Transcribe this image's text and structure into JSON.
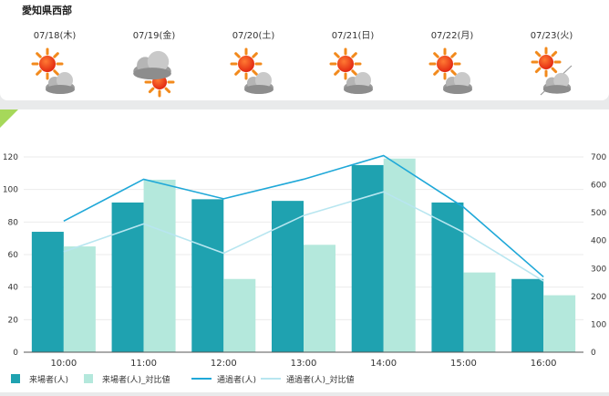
{
  "weather": {
    "region": "愛知県西部",
    "days": [
      {
        "date": "07/18(木)",
        "icon": "sun-with-cloud-icon"
      },
      {
        "date": "07/19(金)",
        "icon": "cloud-with-sun-icon"
      },
      {
        "date": "07/20(土)",
        "icon": "sun-with-cloud-icon"
      },
      {
        "date": "07/21(日)",
        "icon": "sun-with-cloud-icon"
      },
      {
        "date": "07/22(月)",
        "icon": "sun-with-cloud-icon"
      },
      {
        "date": "07/23(火)",
        "icon": "sun-then-cloud-icon"
      }
    ]
  },
  "chart_data": {
    "type": "bar",
    "categories": [
      "10:00",
      "11:00",
      "12:00",
      "13:00",
      "14:00",
      "15:00",
      "16:00"
    ],
    "series": [
      {
        "name": "来場者(人)",
        "type": "bar",
        "axis": "left",
        "color": "#1fa2b0",
        "values": [
          74,
          92,
          94,
          93,
          115,
          92,
          45
        ]
      },
      {
        "name": "来場者(人)_対比値",
        "type": "bar",
        "axis": "left",
        "color": "#b4e8dc",
        "values": [
          65,
          106,
          45,
          66,
          119,
          49,
          35
        ]
      },
      {
        "name": "通過者(人)",
        "type": "line",
        "axis": "right",
        "color": "#1fa8d8",
        "values": [
          470,
          620,
          550,
          620,
          705,
          520,
          270
        ]
      },
      {
        "name": "通過者(人)_対比値",
        "type": "line",
        "axis": "right",
        "color": "#b8e6f0",
        "values": [
          360,
          460,
          355,
          490,
          575,
          430,
          255
        ]
      }
    ],
    "ylim": [
      0,
      120
    ],
    "yticks": [
      0,
      20,
      40,
      60,
      80,
      100,
      120
    ],
    "y2lim": [
      0,
      700
    ],
    "y2ticks": [
      0,
      100,
      200,
      300,
      400,
      500,
      600,
      700
    ],
    "grid": true,
    "legend": "bottom"
  }
}
